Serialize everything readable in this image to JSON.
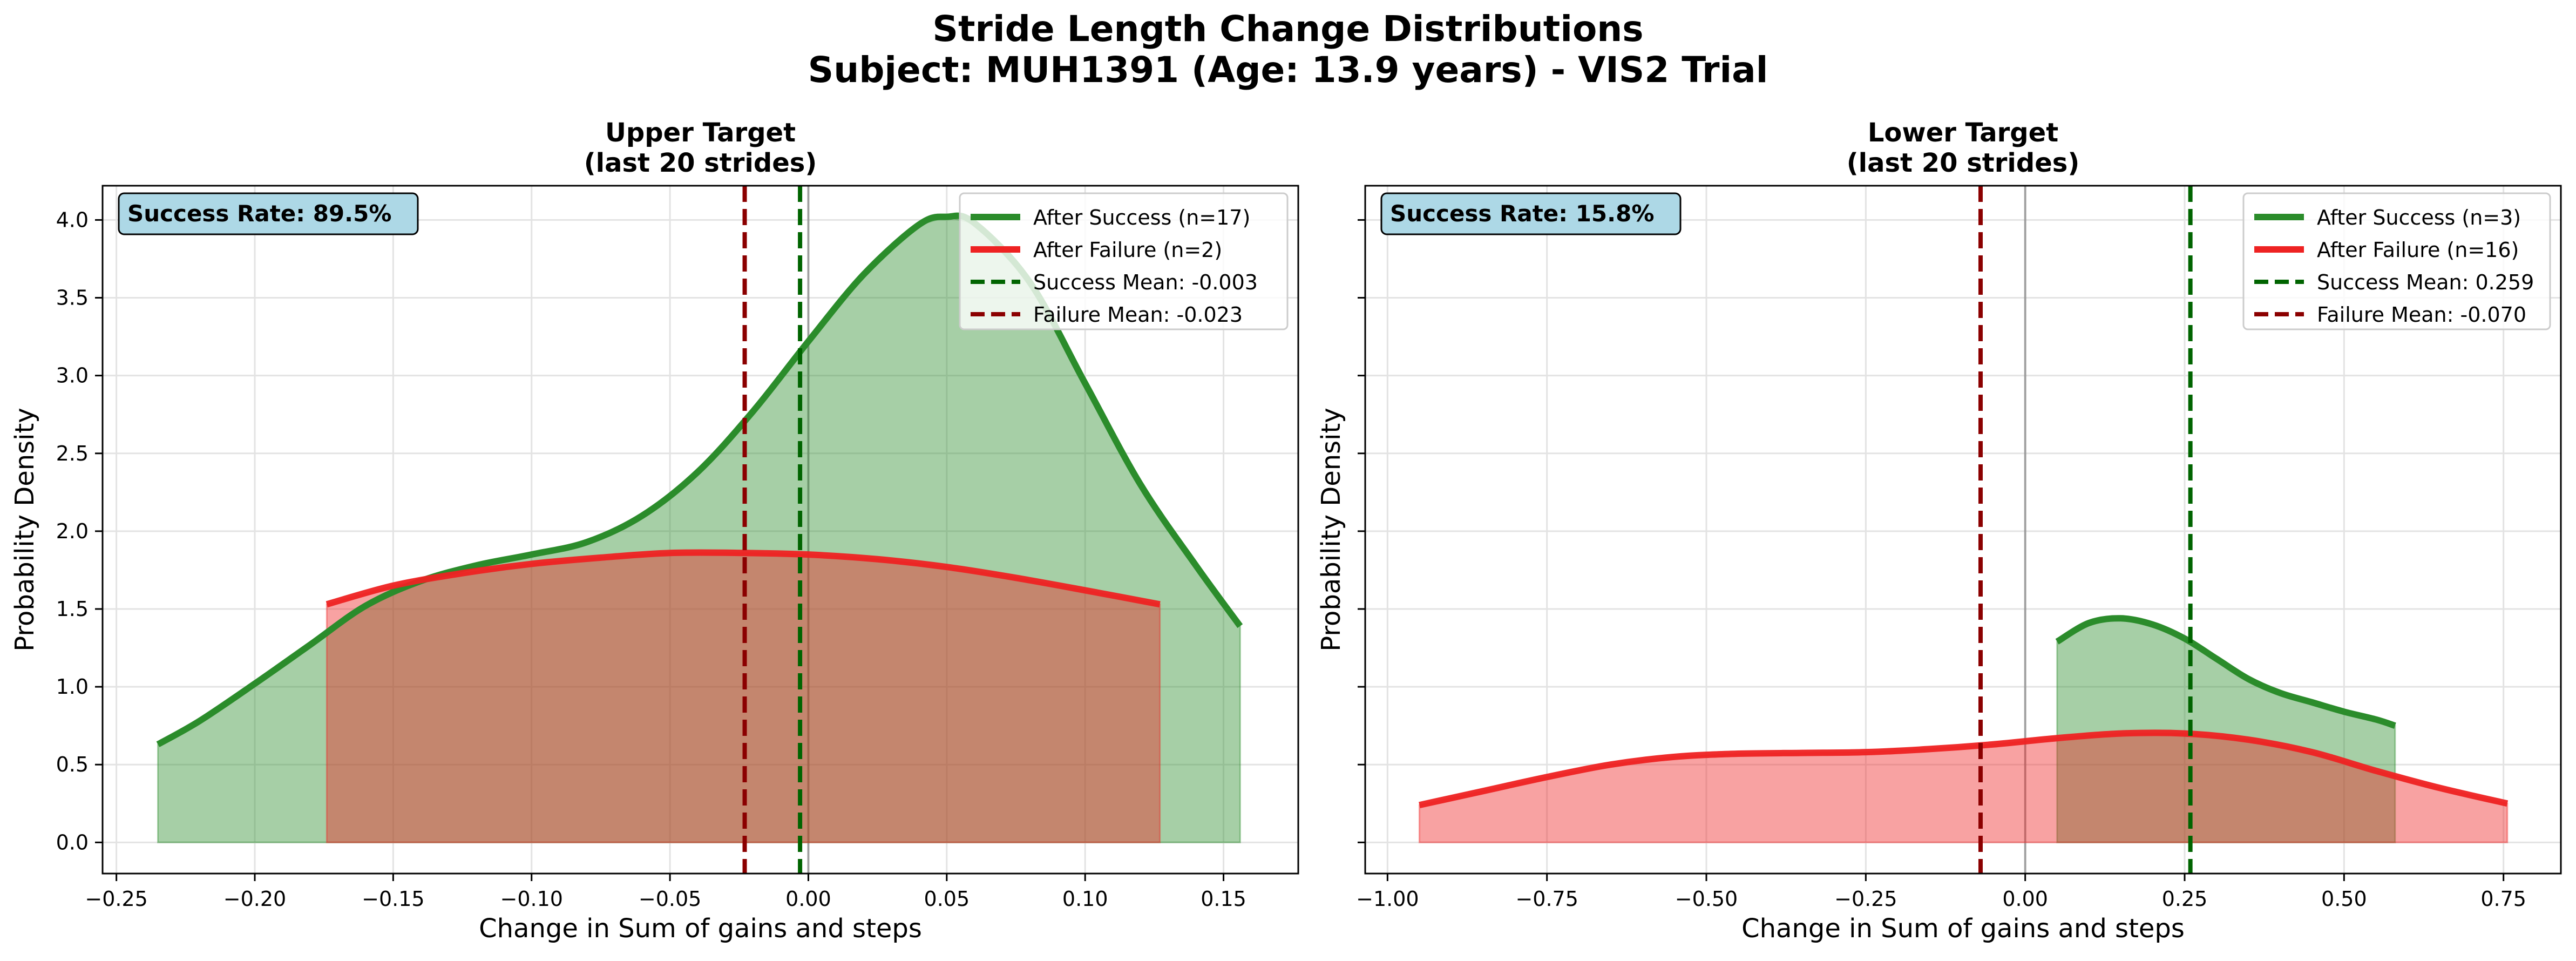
{
  "figure": {
    "title_line1": "Stride Length Change Distributions",
    "title_line2": "Subject: MUH1391 (Age: 13.9 years) - VIS2 Trial"
  },
  "colors": {
    "success_line": "#2b8c2b",
    "success_fill": "#a6d3a4",
    "failure_line": "#ee2222",
    "failure_fill": "#ffa5a5",
    "overlap_fill": "#c5896c",
    "success_mean": "#006400",
    "failure_mean": "#8b0000",
    "annotation_bg": "#add8e6"
  },
  "chart_data": [
    {
      "type": "area",
      "title_line1": "Upper Target",
      "title_line2": "(last 20 strides)",
      "xlabel": "Change in Sum of gains and steps",
      "ylabel": "Probability Density",
      "xlim": [
        -0.255,
        0.177
      ],
      "ylim": [
        -0.2,
        4.22
      ],
      "xticks": [
        -0.25,
        -0.2,
        -0.15,
        -0.1,
        -0.05,
        0.0,
        0.05,
        0.1,
        0.15
      ],
      "xtick_labels": [
        "−0.25",
        "−0.20",
        "−0.15",
        "−0.10",
        "−0.05",
        "0.00",
        "0.05",
        "0.10",
        "0.15"
      ],
      "yticks": [
        0,
        0.5,
        1,
        1.5,
        2,
        2.5,
        3,
        3.5,
        4
      ],
      "ytick_labels": [
        "0.0",
        "0.5",
        "1.0",
        "1.5",
        "2.0",
        "2.5",
        "3.0",
        "3.5",
        "4.0"
      ],
      "grid": true,
      "legend_position": "top-right",
      "annotation": "Success Rate: 89.5%",
      "series": [
        {
          "name": "After Success (n=17)",
          "role": "success",
          "x": [
            -0.235,
            -0.22,
            -0.2,
            -0.18,
            -0.16,
            -0.14,
            -0.12,
            -0.1,
            -0.08,
            -0.06,
            -0.04,
            -0.02,
            0.0,
            0.02,
            0.04,
            0.05,
            0.06,
            0.08,
            0.1,
            0.12,
            0.14,
            0.156
          ],
          "y": [
            0.63,
            0.78,
            1.02,
            1.27,
            1.52,
            1.68,
            1.78,
            1.85,
            1.93,
            2.1,
            2.38,
            2.77,
            3.22,
            3.65,
            3.97,
            4.02,
            3.98,
            3.6,
            2.95,
            2.3,
            1.78,
            1.39
          ]
        },
        {
          "name": "After Failure (n=2)",
          "role": "failure",
          "x": [
            -0.174,
            -0.15,
            -0.125,
            -0.1,
            -0.075,
            -0.05,
            -0.023,
            0.0,
            0.025,
            0.05,
            0.075,
            0.1,
            0.127
          ],
          "y": [
            1.53,
            1.65,
            1.73,
            1.79,
            1.83,
            1.86,
            1.86,
            1.85,
            1.82,
            1.77,
            1.7,
            1.62,
            1.53
          ]
        }
      ],
      "means": [
        {
          "name": "Success Mean: -0.003",
          "role": "success",
          "x": -0.003
        },
        {
          "name": "Failure Mean: -0.023",
          "role": "failure",
          "x": -0.023
        }
      ],
      "zero_line": 0
    },
    {
      "type": "area",
      "title_line1": "Lower Target",
      "title_line2": "(last 20 strides)",
      "xlabel": "Change in Sum of gains and steps",
      "ylabel": "Probability Density",
      "xlim": [
        -1.035,
        0.84
      ],
      "ylim": [
        -0.2,
        4.22
      ],
      "xticks": [
        -1.0,
        -0.75,
        -0.5,
        -0.25,
        0.0,
        0.25,
        0.5,
        0.75
      ],
      "xtick_labels": [
        "−1.00",
        "−0.75",
        "−0.50",
        "−0.25",
        "0.00",
        "0.25",
        "0.50",
        "0.75"
      ],
      "yticks": [
        0,
        0.5,
        1,
        1.5,
        2,
        2.5,
        3,
        3.5,
        4
      ],
      "ytick_labels": [],
      "grid": true,
      "legend_position": "top-right",
      "annotation": "Success Rate: 15.8%",
      "series": [
        {
          "name": "After Success (n=3)",
          "role": "success",
          "x": [
            0.05,
            0.1,
            0.15,
            0.2,
            0.25,
            0.3,
            0.35,
            0.4,
            0.45,
            0.5,
            0.55,
            0.58
          ],
          "y": [
            1.29,
            1.41,
            1.44,
            1.4,
            1.31,
            1.18,
            1.05,
            0.96,
            0.9,
            0.84,
            0.79,
            0.75
          ]
        },
        {
          "name": "After Failure (n=16)",
          "role": "failure",
          "x": [
            -0.95,
            -0.85,
            -0.75,
            -0.65,
            -0.55,
            -0.45,
            -0.35,
            -0.25,
            -0.15,
            -0.05,
            0.05,
            0.15,
            0.25,
            0.35,
            0.45,
            0.55,
            0.65,
            0.756
          ],
          "y": [
            0.24,
            0.33,
            0.42,
            0.5,
            0.55,
            0.57,
            0.575,
            0.58,
            0.6,
            0.63,
            0.67,
            0.7,
            0.7,
            0.66,
            0.58,
            0.46,
            0.35,
            0.25
          ]
        }
      ],
      "means": [
        {
          "name": "Success Mean: 0.259",
          "role": "success",
          "x": 0.259
        },
        {
          "name": "Failure Mean: -0.070",
          "role": "failure",
          "x": -0.07
        }
      ],
      "zero_line": 0
    }
  ]
}
